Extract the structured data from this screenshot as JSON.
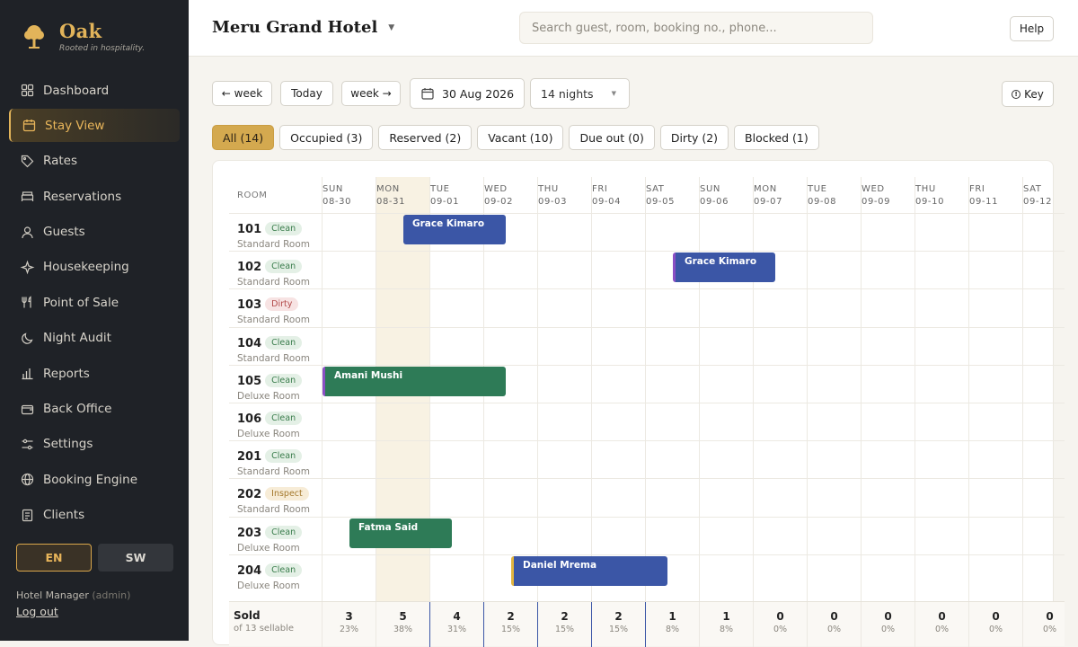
{
  "brand": {
    "name": "Oak",
    "tagline": "Rooted in hospitality."
  },
  "nav": [
    {
      "label": "Dashboard",
      "icon": "dashboard-icon"
    },
    {
      "label": "Stay View",
      "icon": "calendar-icon",
      "active": true
    },
    {
      "label": "Rates",
      "icon": "tag-icon"
    },
    {
      "label": "Reservations",
      "icon": "bed-icon"
    },
    {
      "label": "Guests",
      "icon": "user-icon"
    },
    {
      "label": "Housekeeping",
      "icon": "sparkle-icon"
    },
    {
      "label": "Point of Sale",
      "icon": "utensils-icon"
    },
    {
      "label": "Night Audit",
      "icon": "moon-icon"
    },
    {
      "label": "Reports",
      "icon": "bar-chart-icon"
    },
    {
      "label": "Back Office",
      "icon": "wallet-icon"
    },
    {
      "label": "Settings",
      "icon": "sliders-icon"
    },
    {
      "label": "Booking Engine",
      "icon": "globe-icon"
    },
    {
      "label": "Clients",
      "icon": "document-icon"
    }
  ],
  "lang": {
    "en": "EN",
    "sw": "SW"
  },
  "user": {
    "role": "Hotel Manager",
    "login": "(admin)",
    "logout": "Log out"
  },
  "header": {
    "hotel": "Meru Grand Hotel",
    "search_placeholder": "Search guest, room, booking no., phone...",
    "help": "Help"
  },
  "toolbar": {
    "prev_week": "← week",
    "today": "Today",
    "next_week": "week →",
    "date": "30 Aug 2026",
    "nights": "14 nights",
    "key": "Key"
  },
  "filters": [
    {
      "label": "All (14)",
      "active": true
    },
    {
      "label": "Occupied (3)"
    },
    {
      "label": "Reserved (2)"
    },
    {
      "label": "Vacant (10)"
    },
    {
      "label": "Due out (0)"
    },
    {
      "label": "Dirty (2)"
    },
    {
      "label": "Blocked (1)"
    }
  ],
  "grid": {
    "room_header": "ROOM",
    "days": [
      {
        "dow": "SUN",
        "date": "08-30"
      },
      {
        "dow": "MON",
        "date": "08-31",
        "today": true
      },
      {
        "dow": "TUE",
        "date": "09-01"
      },
      {
        "dow": "WED",
        "date": "09-02"
      },
      {
        "dow": "THU",
        "date": "09-03"
      },
      {
        "dow": "FRI",
        "date": "09-04"
      },
      {
        "dow": "SAT",
        "date": "09-05"
      },
      {
        "dow": "SUN",
        "date": "09-06"
      },
      {
        "dow": "MON",
        "date": "09-07"
      },
      {
        "dow": "TUE",
        "date": "09-08"
      },
      {
        "dow": "WED",
        "date": "09-09"
      },
      {
        "dow": "THU",
        "date": "09-10"
      },
      {
        "dow": "FRI",
        "date": "09-11"
      },
      {
        "dow": "SAT",
        "date": "09-12"
      }
    ],
    "rooms": [
      {
        "num": "101",
        "status": "Clean",
        "type": "Standard Room"
      },
      {
        "num": "102",
        "status": "Clean",
        "type": "Standard Room"
      },
      {
        "num": "103",
        "status": "Dirty",
        "type": "Standard Room"
      },
      {
        "num": "104",
        "status": "Clean",
        "type": "Standard Room"
      },
      {
        "num": "105",
        "status": "Clean",
        "type": "Deluxe Room"
      },
      {
        "num": "106",
        "status": "Clean",
        "type": "Deluxe Room"
      },
      {
        "num": "201",
        "status": "Clean",
        "type": "Standard Room"
      },
      {
        "num": "202",
        "status": "Inspect",
        "type": "Standard Room"
      },
      {
        "num": "203",
        "status": "Clean",
        "type": "Deluxe Room"
      },
      {
        "num": "204",
        "status": "Clean",
        "type": "Deluxe Room"
      }
    ],
    "bookings": [
      {
        "guest": "Grace Kimaro",
        "row": 0,
        "start": 1.5,
        "nights": 1.9,
        "color": "blue"
      },
      {
        "guest": "Grace Kimaro",
        "row": 1,
        "start": 6.5,
        "nights": 1.9,
        "color": "blue",
        "accent": "purple"
      },
      {
        "guest": "Amani Mushi",
        "row": 4,
        "start": 0.0,
        "nights": 3.4,
        "color": "green",
        "accent": "purple"
      },
      {
        "guest": "Fatma Said",
        "row": 8,
        "start": 0.5,
        "nights": 1.9,
        "color": "green"
      },
      {
        "guest": "Daniel Mrema",
        "row": 9,
        "start": 3.5,
        "nights": 2.9,
        "color": "blue",
        "accent": "yellow"
      }
    ],
    "sold": {
      "label": "Sold",
      "sub": "of 13 sellable",
      "values": [
        {
          "n": "3",
          "p": "23%"
        },
        {
          "n": "5",
          "p": "38%"
        },
        {
          "n": "4",
          "p": "31%"
        },
        {
          "n": "2",
          "p": "15%"
        },
        {
          "n": "2",
          "p": "15%"
        },
        {
          "n": "2",
          "p": "15%"
        },
        {
          "n": "1",
          "p": "8%"
        },
        {
          "n": "1",
          "p": "8%"
        },
        {
          "n": "0",
          "p": "0%"
        },
        {
          "n": "0",
          "p": "0%"
        },
        {
          "n": "0",
          "p": "0%"
        },
        {
          "n": "0",
          "p": "0%"
        },
        {
          "n": "0",
          "p": "0%"
        },
        {
          "n": "0",
          "p": "0%"
        }
      ]
    }
  }
}
